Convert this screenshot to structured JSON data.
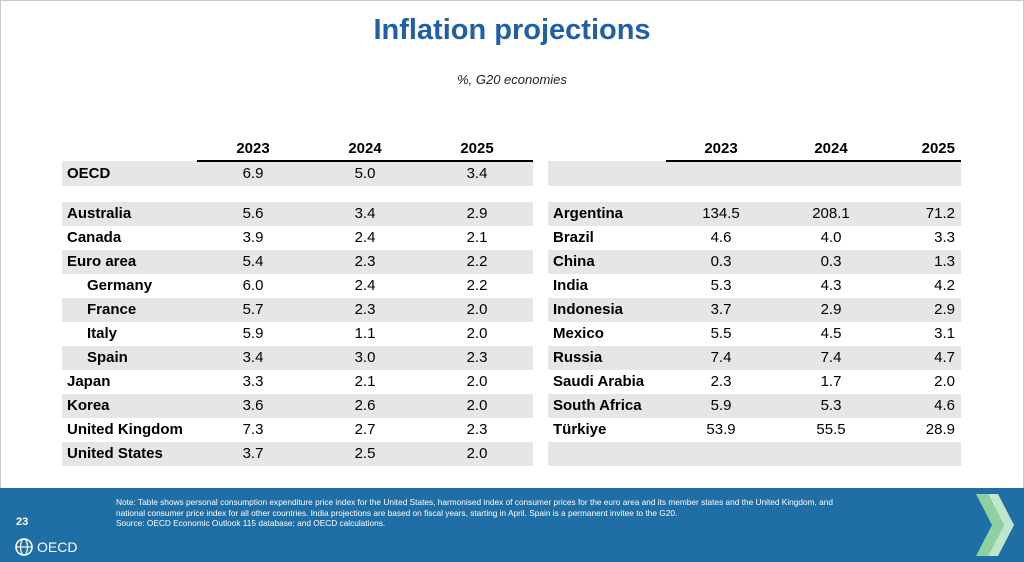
{
  "title": "Inflation projections",
  "subtitle": "%, G20 economies",
  "left": {
    "years": [
      "2023",
      "2024",
      "2025"
    ],
    "rows": [
      {
        "name": "OECD",
        "v": [
          "6.9",
          "5.0",
          "3.4"
        ]
      },
      {
        "name": "Australia",
        "v": [
          "5.6",
          "3.4",
          "2.9"
        ]
      },
      {
        "name": "Canada",
        "v": [
          "3.9",
          "2.4",
          "2.1"
        ]
      },
      {
        "name": "Euro area",
        "v": [
          "5.4",
          "2.3",
          "2.2"
        ]
      },
      {
        "name": "Germany",
        "v": [
          "6.0",
          "2.4",
          "2.2"
        ]
      },
      {
        "name": "France",
        "v": [
          "5.7",
          "2.3",
          "2.0"
        ]
      },
      {
        "name": "Italy",
        "v": [
          "5.9",
          "1.1",
          "2.0"
        ]
      },
      {
        "name": "Spain",
        "v": [
          "3.4",
          "3.0",
          "2.3"
        ]
      },
      {
        "name": "Japan",
        "v": [
          "3.3",
          "2.1",
          "2.0"
        ]
      },
      {
        "name": "Korea",
        "v": [
          "3.6",
          "2.6",
          "2.0"
        ]
      },
      {
        "name": "United Kingdom",
        "v": [
          "7.3",
          "2.7",
          "2.3"
        ]
      },
      {
        "name": "United States",
        "v": [
          "3.7",
          "2.5",
          "2.0"
        ]
      }
    ]
  },
  "right": {
    "years": [
      "2023",
      "2024",
      "2025"
    ],
    "rows": [
      {
        "name": "Argentina",
        "v": [
          "134.5",
          "208.1",
          "71.2"
        ]
      },
      {
        "name": "Brazil",
        "v": [
          "4.6",
          "4.0",
          "3.3"
        ]
      },
      {
        "name": "China",
        "v": [
          "0.3",
          "0.3",
          "1.3"
        ]
      },
      {
        "name": "India",
        "v": [
          "5.3",
          "4.3",
          "4.2"
        ]
      },
      {
        "name": "Indonesia",
        "v": [
          "3.7",
          "2.9",
          "2.9"
        ]
      },
      {
        "name": "Mexico",
        "v": [
          "5.5",
          "4.5",
          "3.1"
        ]
      },
      {
        "name": "Russia",
        "v": [
          "7.4",
          "7.4",
          "4.7"
        ]
      },
      {
        "name": "Saudi Arabia",
        "v": [
          "2.3",
          "1.7",
          "2.0"
        ]
      },
      {
        "name": "South Africa",
        "v": [
          "5.9",
          "5.3",
          "4.6"
        ]
      },
      {
        "name": "Türkiye",
        "v": [
          "53.9",
          "55.5",
          "28.9"
        ]
      }
    ]
  },
  "footer": {
    "page_number": "23",
    "note_lines": [
      "Note: Table shows personal consumption expenditure price index for the United States, harmonised index of consumer prices for the euro area and its member states and the United Kingdom, and",
      "national consumer price index for all other countries. India projections are based on fiscal years, starting in April. Spain is a permanent invitee to the G20.",
      "Source: OECD Economic Outlook 115 database; and OECD calculations."
    ],
    "logo_text": "OECD",
    "logo_icon": "globe-icon",
    "corner_icon": "chevron-icon",
    "colors": {
      "band": "#1f6ea6",
      "title": "#1f5fa8",
      "chevron": "#8fd0a0"
    }
  }
}
